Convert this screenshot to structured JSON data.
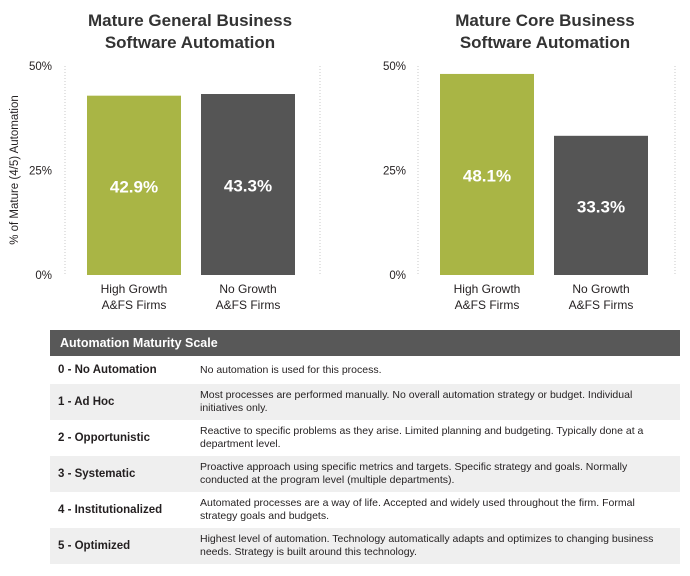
{
  "y_axis_label": "% of Mature (4/5) Automation",
  "chart_data": [
    {
      "type": "bar",
      "title": "Mature General Business Software Automation",
      "title_lines": [
        "Mature General Business",
        "Software Automation"
      ],
      "categories": [
        "High Growth A&FS Firms",
        "No Growth A&FS Firms"
      ],
      "category_lines": [
        [
          "High Growth",
          "A&FS Firms"
        ],
        [
          "No Growth",
          "A&FS Firms"
        ]
      ],
      "values": [
        42.9,
        43.3
      ],
      "data_labels": [
        "42.9%",
        "43.3%"
      ],
      "colors": [
        "#a9b545",
        "#555555"
      ],
      "ylim": [
        0,
        50
      ],
      "yticks": [
        0,
        25,
        50
      ],
      "ytick_labels": [
        "0%",
        "25%",
        "50%"
      ],
      "ylabel": "% of Mature (4/5) Automation"
    },
    {
      "type": "bar",
      "title": "Mature Core Business Software Automation",
      "title_lines": [
        "Mature Core Business",
        "Software Automation"
      ],
      "categories": [
        "High Growth A&FS Firms",
        "No Growth A&FS Firms"
      ],
      "category_lines": [
        [
          "High Growth",
          "A&FS Firms"
        ],
        [
          "No Growth",
          "A&FS Firms"
        ]
      ],
      "values": [
        48.1,
        33.3
      ],
      "data_labels": [
        "48.1%",
        "33.3%"
      ],
      "colors": [
        "#a9b545",
        "#555555"
      ],
      "ylim": [
        0,
        50
      ],
      "yticks": [
        0,
        25,
        50
      ],
      "ytick_labels": [
        "0%",
        "25%",
        "50%"
      ],
      "ylabel": ""
    }
  ],
  "scale_table": {
    "header": "Automation Maturity Scale",
    "rows": [
      {
        "level": "0 - No Automation",
        "description": "No automation is used for this process."
      },
      {
        "level": "1 - Ad Hoc",
        "description": "Most processes are performed manually. No overall automation strategy or budget. Individual initiatives only."
      },
      {
        "level": "2 - Opportunistic",
        "description": "Reactive to specific problems as they arise. Limited planning and budgeting. Typically done at a department level."
      },
      {
        "level": "3 - Systematic",
        "description": "Proactive approach using specific metrics and targets. Specific strategy and goals. Normally conducted at the program level (multiple departments)."
      },
      {
        "level": "4 - Institutionalized",
        "description": "Automated processes are a way of life. Accepted and widely used throughout the firm. Formal strategy goals and budgets."
      },
      {
        "level": "5 - Optimized",
        "description": "Highest level of automation. Technology automatically adapts and optimizes to changing business needs. Strategy is built around this technology."
      }
    ]
  }
}
